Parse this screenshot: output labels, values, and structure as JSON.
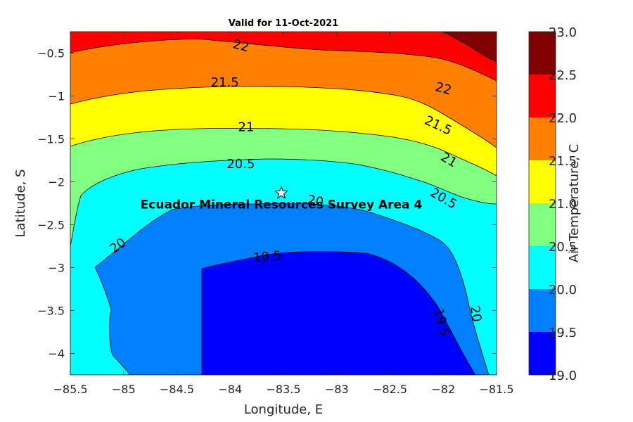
{
  "chart_data": {
    "type": "heatmap",
    "subtype": "filled-contour",
    "title": "Valid for 11-Oct-2021",
    "xlabel": "Longitude, E",
    "ylabel": "Latitude, S",
    "xlim": [
      -85.5,
      -81.5
    ],
    "ylim": [
      -4.25,
      -0.25
    ],
    "xticks": [
      -85.5,
      -85,
      -84.5,
      -84,
      -83.5,
      -83,
      -82.5,
      -82,
      -81.5
    ],
    "xtick_labels": [
      "−85.5",
      "−85",
      "−84.5",
      "−84",
      "−83.5",
      "−83",
      "−82.5",
      "−82",
      "−81.5"
    ],
    "yticks": [
      -0.5,
      -1,
      -1.5,
      -2,
      -2.5,
      -3,
      -3.5,
      -4
    ],
    "ytick_labels": [
      "−0.5",
      "−1",
      "−1.5",
      "−2",
      "−2.5",
      "−3",
      "−3.5",
      "−4"
    ],
    "colorbar": {
      "label": "Air Temperature, C",
      "range": [
        19.0,
        23.0
      ],
      "ticks": [
        "19.0",
        "19.5",
        "20.0",
        "20.5",
        "21.0",
        "21.5",
        "22.0",
        "22.5",
        "23.0"
      ],
      "levels": [
        {
          "min": 19.0,
          "max": 19.5,
          "color": "#0000ff"
        },
        {
          "min": 19.5,
          "max": 20.0,
          "color": "#0080ff"
        },
        {
          "min": 20.0,
          "max": 20.5,
          "color": "#00ffff"
        },
        {
          "min": 20.5,
          "max": 21.0,
          "color": "#80ff80"
        },
        {
          "min": 21.0,
          "max": 21.5,
          "color": "#ffff00"
        },
        {
          "min": 21.5,
          "max": 22.0,
          "color": "#ff8000"
        },
        {
          "min": 22.0,
          "max": 22.5,
          "color": "#ff0000"
        },
        {
          "min": 22.5,
          "max": 23.0,
          "color": "#800000"
        }
      ]
    },
    "contour_labels": [
      {
        "text": "22",
        "lon": -83.9,
        "lat": -0.42,
        "angle": 15
      },
      {
        "text": "21.5",
        "lon": -84.05,
        "lat": -0.85,
        "angle": 0
      },
      {
        "text": "22",
        "lon": -82.0,
        "lat": -0.92,
        "angle": 15
      },
      {
        "text": "21",
        "lon": -83.85,
        "lat": -1.37,
        "angle": 0
      },
      {
        "text": "21.5",
        "lon": -82.05,
        "lat": -1.35,
        "angle": 25
      },
      {
        "text": "20.5",
        "lon": -83.9,
        "lat": -1.8,
        "angle": 0
      },
      {
        "text": "21",
        "lon": -81.95,
        "lat": -1.75,
        "angle": 30
      },
      {
        "text": "20",
        "lon": -83.2,
        "lat": -2.23,
        "angle": 10
      },
      {
        "text": "20.5",
        "lon": -82.0,
        "lat": -2.2,
        "angle": 30
      },
      {
        "text": "20",
        "lon": -85.05,
        "lat": -2.75,
        "angle": -35
      },
      {
        "text": "19.5",
        "lon": -83.65,
        "lat": -2.88,
        "angle": -5
      },
      {
        "text": "19.5",
        "lon": -82.02,
        "lat": -3.64,
        "angle": 75
      },
      {
        "text": "20",
        "lon": -81.7,
        "lat": -3.54,
        "angle": 80
      }
    ],
    "site": {
      "label": "Ecuador Mineral Resources Survey Area 4",
      "lon": -83.52,
      "lat": -2.13
    }
  }
}
